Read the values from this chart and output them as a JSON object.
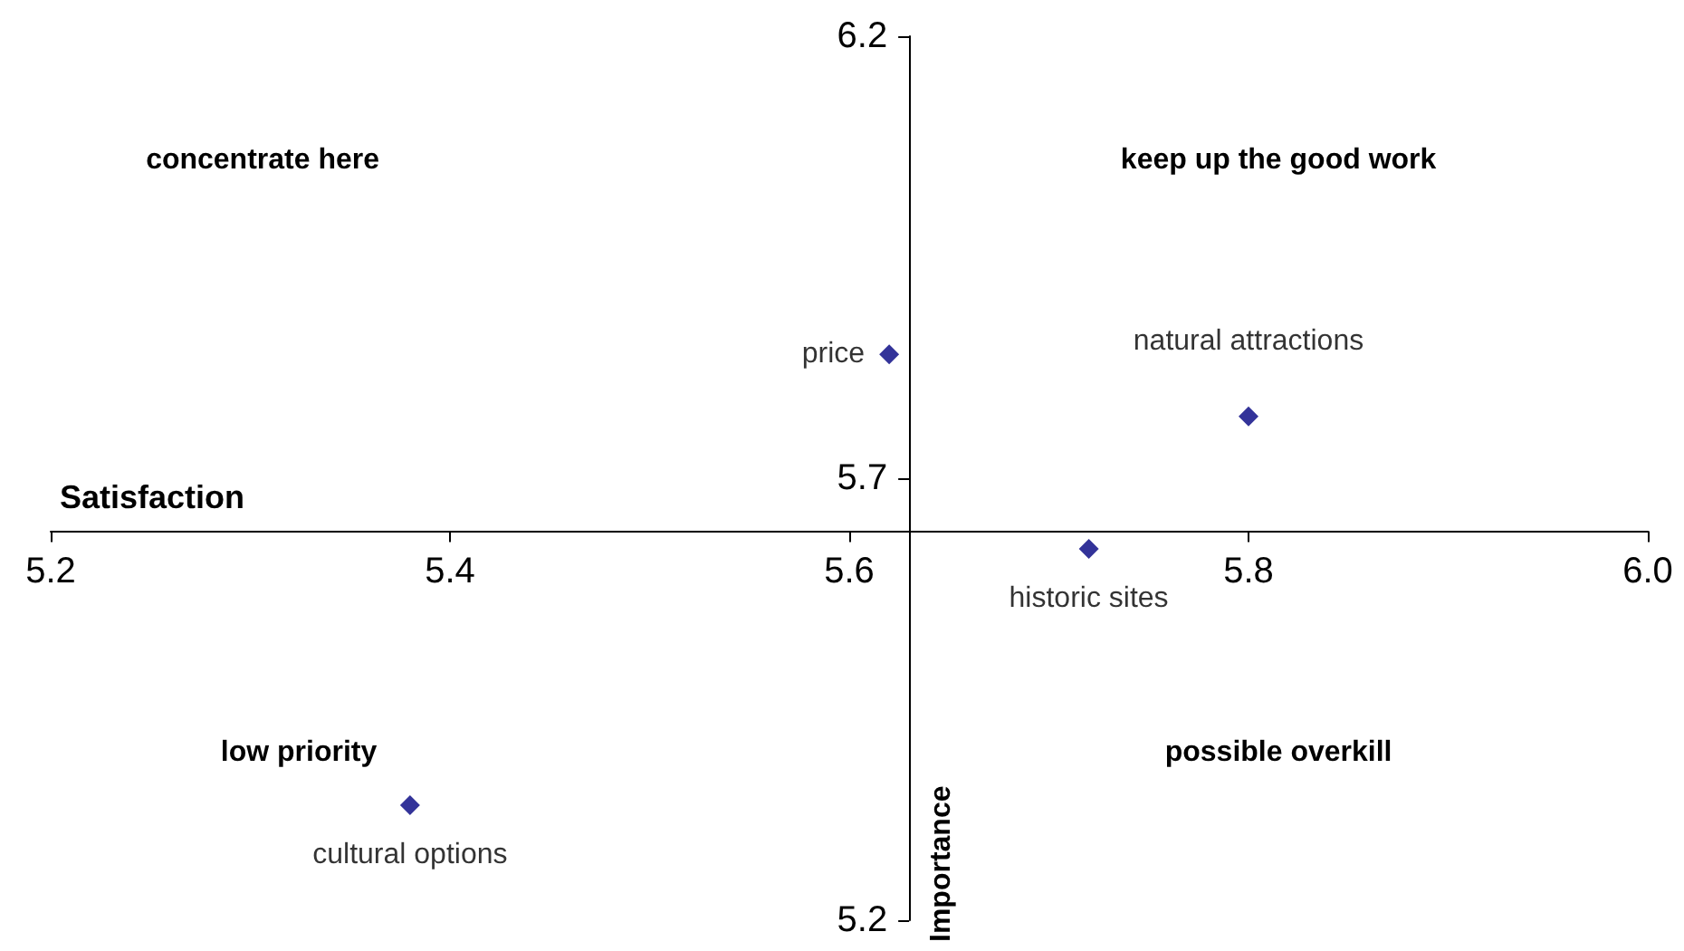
{
  "chart_data": {
    "type": "scatter",
    "xlabel": "Satisfaction",
    "ylabel": "Importance",
    "xlim": [
      5.2,
      6.0
    ],
    "xticks": [
      5.2,
      5.4,
      5.6,
      5.8,
      {
        "value": 6,
        "label": "6.0"
      }
    ],
    "ylim": [
      5.2,
      6.2
    ],
    "yticks": [
      5.2,
      5.7,
      6.2
    ],
    "series": [
      {
        "name": "price",
        "color": "#000080",
        "x": [
          5.62
        ],
        "values": [
          5.84
        ]
      },
      {
        "name": "natural attractions",
        "color": "#000080",
        "x": [
          5.8
        ],
        "values": [
          5.77
        ]
      },
      {
        "name": "historic sites",
        "color": "#000080",
        "x": [
          5.72
        ],
        "values": [
          5.62
        ]
      },
      {
        "name": "cultural options",
        "color": "#000080",
        "x": [
          5.38
        ],
        "values": [
          5.33
        ]
      }
    ],
    "annotations": [
      "concentrate here",
      "keep up the good work",
      "low priority",
      "possible overkill"
    ],
    "marker": "diamond",
    "grid": false,
    "legend": false
  }
}
